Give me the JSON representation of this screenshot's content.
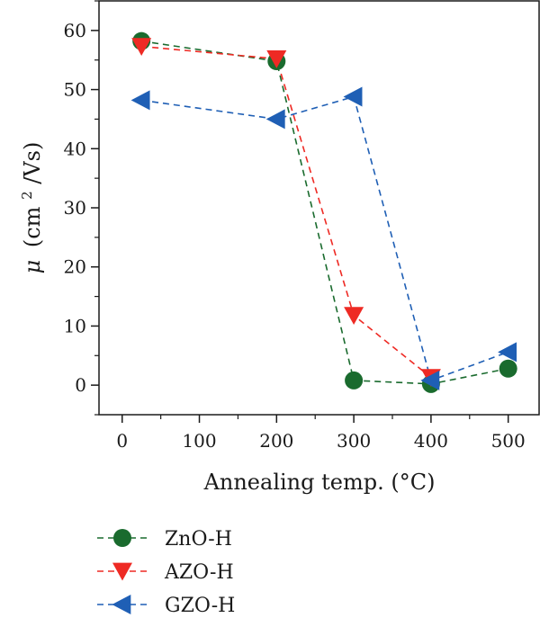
{
  "chart_data": {
    "type": "scatter",
    "title": "",
    "xlabel": "Annealing temp. (°C)",
    "ylabel_symbol": "μ",
    "ylabel_unit_prefix": "(cm",
    "ylabel_unit_sup": "2",
    "ylabel_unit_suffix": "/Vs)",
    "xlim": [
      -30,
      540
    ],
    "ylim": [
      -5,
      65
    ],
    "xticks": [
      0,
      100,
      200,
      300,
      400,
      500
    ],
    "yticks": [
      0,
      10,
      20,
      30,
      40,
      50,
      60
    ],
    "xtick_labels": [
      "0",
      "100",
      "200",
      "300",
      "400",
      "500"
    ],
    "ytick_labels": [
      "0",
      "10",
      "20",
      "30",
      "40",
      "50",
      "60"
    ],
    "grid": false,
    "legend_position": "bottom-left, below plot",
    "series": [
      {
        "name": "ZnO-H",
        "marker": "circle",
        "color": "#1a6b2e",
        "line_style": "dashed",
        "x": [
          25,
          200,
          300,
          400,
          500
        ],
        "y": [
          58.2,
          54.8,
          0.8,
          0.2,
          2.8
        ]
      },
      {
        "name": "AZO-H",
        "marker": "triangle-down",
        "color": "#ee2a24",
        "line_style": "dashed",
        "x": [
          25,
          200,
          300,
          400,
          500
        ],
        "y": [
          57.3,
          55.2,
          11.8,
          1.3,
          null
        ]
      },
      {
        "name": "GZO-H",
        "marker": "triangle-left",
        "color": "#1f5fb5",
        "line_style": "dashed",
        "x": [
          25,
          200,
          300,
          400,
          500
        ],
        "y": [
          48.2,
          45.0,
          48.8,
          0.8,
          5.6
        ]
      }
    ]
  }
}
